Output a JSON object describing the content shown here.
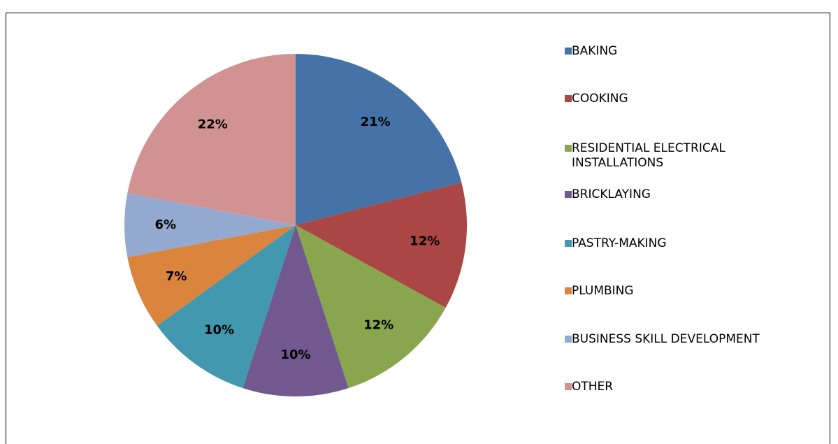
{
  "chart_data": {
    "type": "pie",
    "categories": [
      "BAKING",
      "COOKING",
      "RESIDENTIAL ELECTRICAL INSTALLATIONS",
      "BRICKLAYING",
      "PASTRY-MAKING",
      "PLUMBING",
      "BUSINESS SKILL DEVELOPMENT",
      "OTHER"
    ],
    "values": [
      21,
      12,
      12,
      10,
      10,
      7,
      6,
      22
    ],
    "value_labels": [
      "21%",
      "12%",
      "12%",
      "10%",
      "10%",
      "7%",
      "6%",
      "22%"
    ],
    "colors": [
      "#4572a7",
      "#aa4643",
      "#89a54e",
      "#71588f",
      "#4198af",
      "#db843d",
      "#93a9cf",
      "#d19392"
    ],
    "legend": "right"
  }
}
